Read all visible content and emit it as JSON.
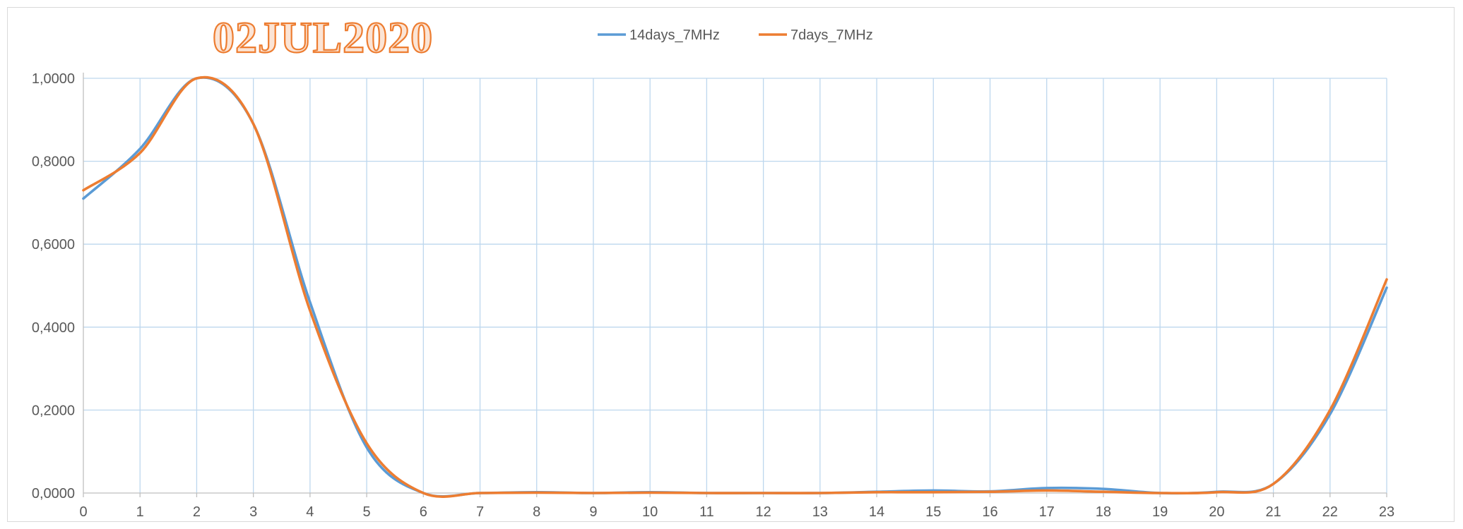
{
  "chart_data": {
    "type": "line",
    "title": "02JUL2020",
    "xlabel": "",
    "ylabel": "",
    "x": [
      0,
      1,
      2,
      3,
      4,
      5,
      6,
      7,
      8,
      9,
      10,
      11,
      12,
      13,
      14,
      15,
      16,
      17,
      18,
      19,
      20,
      21,
      22,
      23
    ],
    "xlim": [
      0,
      23
    ],
    "ylim": [
      0,
      1
    ],
    "yticks": [
      0,
      0.2,
      0.4,
      0.6,
      0.8,
      1.0
    ],
    "ytick_labels": [
      "0,0000",
      "0,2000",
      "0,4000",
      "0,6000",
      "0,8000",
      "1,0000"
    ],
    "grid": true,
    "smooth": true,
    "legend_position": "top",
    "series": [
      {
        "name": "14days_7MHz",
        "color": "#5b9bd5",
        "values": [
          0.71,
          0.83,
          1.0,
          0.89,
          0.46,
          0.11,
          0.0,
          0.0,
          0.002,
          0.0,
          0.002,
          0.0,
          0.0,
          0.0,
          0.003,
          0.006,
          0.004,
          0.012,
          0.01,
          0.0,
          0.003,
          0.022,
          0.19,
          0.495
        ]
      },
      {
        "name": "7days_7MHz",
        "color": "#ed7d31",
        "values": [
          0.73,
          0.82,
          1.0,
          0.89,
          0.44,
          0.12,
          0.0,
          0.0,
          0.001,
          0.0,
          0.001,
          0.0,
          0.0,
          0.0,
          0.002,
          0.002,
          0.003,
          0.006,
          0.003,
          0.0,
          0.002,
          0.022,
          0.2,
          0.515
        ]
      }
    ]
  }
}
